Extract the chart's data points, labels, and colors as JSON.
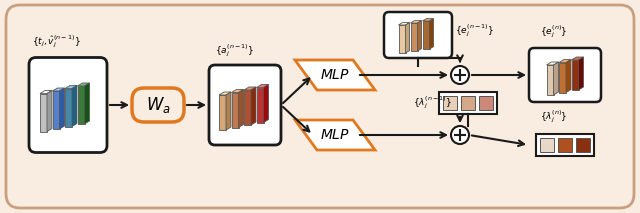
{
  "bg_color": "#f9ece0",
  "border_color": "#c8a080",
  "box_edge_color": "#1a1a1a",
  "orange_color": "#e07820",
  "fig_width": 6.4,
  "fig_height": 2.13,
  "input_bars_colors": [
    "#c0c0c0",
    "#5580cc",
    "#4488aa",
    "#3a7a3a"
  ],
  "aj_bars_colors": [
    "#d4a878",
    "#c07850",
    "#b05030",
    "#c03030"
  ],
  "ej_prev_bars_colors": [
    "#e8c8a0",
    "#c89060",
    "#a86830"
  ],
  "ej_out_bars_colors": [
    "#e0c8b0",
    "#c07030",
    "#903010"
  ],
  "lj_prev_sq_colors": [
    "#e8d0b8",
    "#d4a888",
    "#cc8878"
  ],
  "lj_out_sq_colors": [
    "#e8d8c8",
    "#b05020",
    "#883010"
  ]
}
